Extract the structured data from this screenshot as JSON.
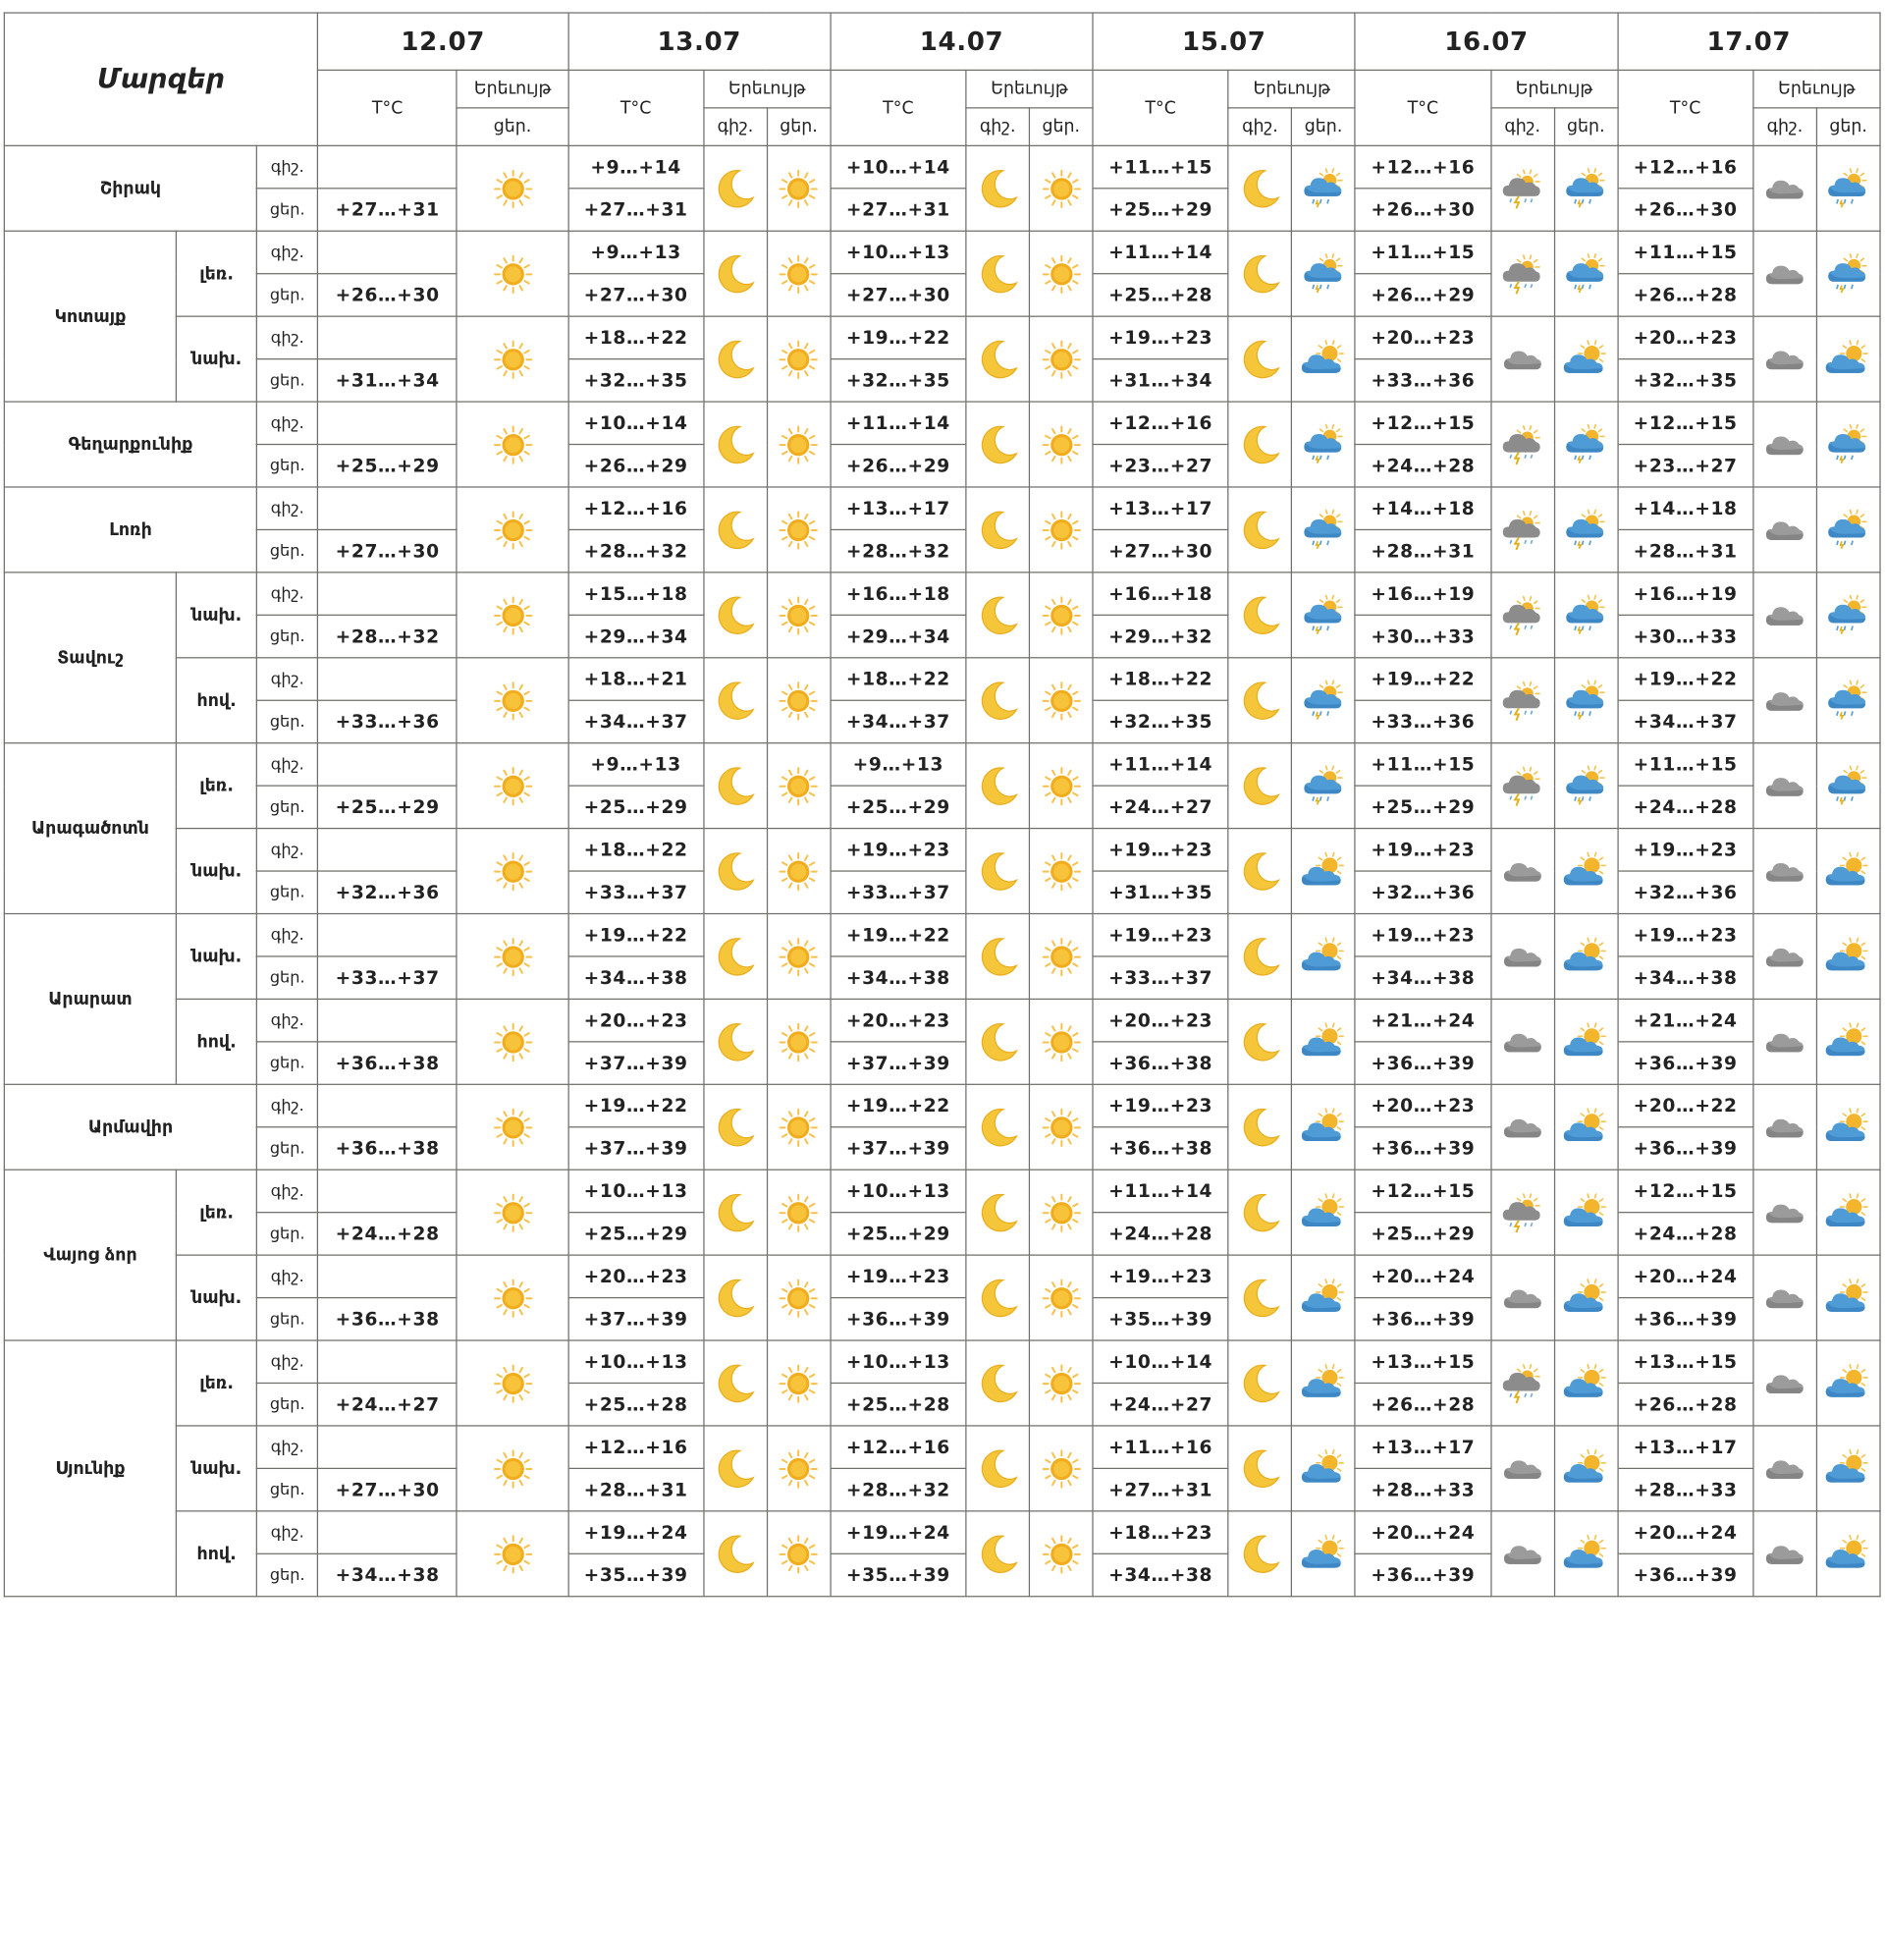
{
  "header": {
    "regions_label": "Մարզեր",
    "temp_label": "T°C",
    "phenomenon_label": "Երեւույթ",
    "night_label": "գիշ.",
    "day_label": "ցեր.",
    "dates": [
      "12.07",
      "13.07",
      "14.07",
      "15.07",
      "16.07",
      "17.07"
    ]
  },
  "icon_legend": {
    "sun": "sun-icon",
    "moon": "moon-icon",
    "thunder": "thunderstorm-icon",
    "rain": "rain-cloud-icon",
    "cloud": "cloud-icon",
    "partly": "partly-cloudy-icon"
  },
  "regions": [
    {
      "name": "Շիրակ",
      "zones": [
        {
          "label": "",
          "night": [
            "",
            "+9…+14",
            "+10…+14",
            "+11…+15",
            "+12…+16",
            "+12…+16"
          ],
          "day": [
            "+27…+31",
            "+27…+31",
            "+27…+31",
            "+25…+29",
            "+26…+30",
            "+26…+30"
          ],
          "day12": "sun",
          "icons": [
            [
              "moon",
              "sun"
            ],
            [
              "moon",
              "sun"
            ],
            [
              "moon",
              "rain"
            ],
            [
              "thunder",
              "rain"
            ],
            [
              "cloud",
              "rain"
            ]
          ]
        }
      ]
    },
    {
      "name": "Կոտայք",
      "zones": [
        {
          "label": "լեռ.",
          "night": [
            "",
            "+9…+13",
            "+10…+13",
            "+11…+14",
            "+11…+15",
            "+11…+15"
          ],
          "day": [
            "+26…+30",
            "+27…+30",
            "+27…+30",
            "+25…+28",
            "+26…+29",
            "+26…+28"
          ],
          "day12": "sun",
          "icons": [
            [
              "moon",
              "sun"
            ],
            [
              "moon",
              "sun"
            ],
            [
              "moon",
              "rain"
            ],
            [
              "thunder",
              "rain"
            ],
            [
              "cloud",
              "rain"
            ]
          ]
        },
        {
          "label": "նախ.",
          "night": [
            "",
            "+18…+22",
            "+19…+22",
            "+19…+23",
            "+20…+23",
            "+20…+23"
          ],
          "day": [
            "+31…+34",
            "+32…+35",
            "+32…+35",
            "+31…+34",
            "+33…+36",
            "+32…+35"
          ],
          "day12": "sun",
          "icons": [
            [
              "moon",
              "sun"
            ],
            [
              "moon",
              "sun"
            ],
            [
              "moon",
              "partly"
            ],
            [
              "cloud",
              "partly"
            ],
            [
              "cloud",
              "partly"
            ]
          ]
        }
      ]
    },
    {
      "name": "Գեղարքունիք",
      "zones": [
        {
          "label": "",
          "night": [
            "",
            "+10…+14",
            "+11…+14",
            "+12…+16",
            "+12…+15",
            "+12…+15"
          ],
          "day": [
            "+25…+29",
            "+26…+29",
            "+26…+29",
            "+23…+27",
            "+24…+28",
            "+23…+27"
          ],
          "day12": "sun",
          "icons": [
            [
              "moon",
              "sun"
            ],
            [
              "moon",
              "sun"
            ],
            [
              "moon",
              "rain"
            ],
            [
              "thunder",
              "rain"
            ],
            [
              "cloud",
              "rain"
            ]
          ]
        }
      ]
    },
    {
      "name": "Լոռի",
      "zones": [
        {
          "label": "",
          "night": [
            "",
            "+12…+16",
            "+13…+17",
            "+13…+17",
            "+14…+18",
            "+14…+18"
          ],
          "day": [
            "+27…+30",
            "+28…+32",
            "+28…+32",
            "+27…+30",
            "+28…+31",
            "+28…+31"
          ],
          "day12": "sun",
          "icons": [
            [
              "moon",
              "sun"
            ],
            [
              "moon",
              "sun"
            ],
            [
              "moon",
              "rain"
            ],
            [
              "thunder",
              "rain"
            ],
            [
              "cloud",
              "rain"
            ]
          ]
        }
      ]
    },
    {
      "name": "Տավուշ",
      "zones": [
        {
          "label": "նախ.",
          "night": [
            "",
            "+15…+18",
            "+16…+18",
            "+16…+18",
            "+16…+19",
            "+16…+19"
          ],
          "day": [
            "+28…+32",
            "+29…+34",
            "+29…+34",
            "+29…+32",
            "+30…+33",
            "+30…+33"
          ],
          "day12": "sun",
          "icons": [
            [
              "moon",
              "sun"
            ],
            [
              "moon",
              "sun"
            ],
            [
              "moon",
              "rain"
            ],
            [
              "thunder",
              "rain"
            ],
            [
              "cloud",
              "rain"
            ]
          ]
        },
        {
          "label": "հով.",
          "night": [
            "",
            "+18…+21",
            "+18…+22",
            "+18…+22",
            "+19…+22",
            "+19…+22"
          ],
          "day": [
            "+33…+36",
            "+34…+37",
            "+34…+37",
            "+32…+35",
            "+33…+36",
            "+34…+37"
          ],
          "day12": "sun",
          "icons": [
            [
              "moon",
              "sun"
            ],
            [
              "moon",
              "sun"
            ],
            [
              "moon",
              "rain"
            ],
            [
              "thunder",
              "rain"
            ],
            [
              "cloud",
              "rain"
            ]
          ]
        }
      ]
    },
    {
      "name": "Արագածոտն",
      "zones": [
        {
          "label": "լեռ.",
          "night": [
            "",
            "+9…+13",
            "+9…+13",
            "+11…+14",
            "+11…+15",
            "+11…+15"
          ],
          "day": [
            "+25…+29",
            "+25…+29",
            "+25…+29",
            "+24…+27",
            "+25…+29",
            "+24…+28"
          ],
          "day12": "sun",
          "icons": [
            [
              "moon",
              "sun"
            ],
            [
              "moon",
              "sun"
            ],
            [
              "moon",
              "rain"
            ],
            [
              "thunder",
              "rain"
            ],
            [
              "cloud",
              "rain"
            ]
          ]
        },
        {
          "label": "նախ.",
          "night": [
            "",
            "+18…+22",
            "+19…+23",
            "+19…+23",
            "+19…+23",
            "+19…+23"
          ],
          "day": [
            "+32…+36",
            "+33…+37",
            "+33…+37",
            "+31…+35",
            "+32…+36",
            "+32…+36"
          ],
          "day12": "sun",
          "icons": [
            [
              "moon",
              "sun"
            ],
            [
              "moon",
              "sun"
            ],
            [
              "moon",
              "partly"
            ],
            [
              "cloud",
              "partly"
            ],
            [
              "cloud",
              "partly"
            ]
          ]
        }
      ]
    },
    {
      "name": "Արարատ",
      "zones": [
        {
          "label": "նախ.",
          "night": [
            "",
            "+19…+22",
            "+19…+22",
            "+19…+23",
            "+19…+23",
            "+19…+23"
          ],
          "day": [
            "+33…+37",
            "+34…+38",
            "+34…+38",
            "+33…+37",
            "+34…+38",
            "+34…+38"
          ],
          "day12": "sun",
          "icons": [
            [
              "moon",
              "sun"
            ],
            [
              "moon",
              "sun"
            ],
            [
              "moon",
              "partly"
            ],
            [
              "cloud",
              "partly"
            ],
            [
              "cloud",
              "partly"
            ]
          ]
        },
        {
          "label": "հով.",
          "night": [
            "",
            "+20…+23",
            "+20…+23",
            "+20…+23",
            "+21…+24",
            "+21…+24"
          ],
          "day": [
            "+36…+38",
            "+37…+39",
            "+37…+39",
            "+36…+38",
            "+36…+39",
            "+36…+39"
          ],
          "day12": "sun",
          "icons": [
            [
              "moon",
              "sun"
            ],
            [
              "moon",
              "sun"
            ],
            [
              "moon",
              "partly"
            ],
            [
              "cloud",
              "partly"
            ],
            [
              "cloud",
              "partly"
            ]
          ]
        }
      ]
    },
    {
      "name": "Արմավիր",
      "zones": [
        {
          "label": "",
          "night": [
            "",
            "+19…+22",
            "+19…+22",
            "+19…+23",
            "+20…+23",
            "+20…+22"
          ],
          "day": [
            "+36…+38",
            "+37…+39",
            "+37…+39",
            "+36…+38",
            "+36…+39",
            "+36…+39"
          ],
          "day12": "sun",
          "icons": [
            [
              "moon",
              "sun"
            ],
            [
              "moon",
              "sun"
            ],
            [
              "moon",
              "partly"
            ],
            [
              "cloud",
              "partly"
            ],
            [
              "cloud",
              "partly"
            ]
          ]
        }
      ]
    },
    {
      "name": "Վայոց ձոր",
      "zones": [
        {
          "label": "լեռ.",
          "night": [
            "",
            "+10…+13",
            "+10…+13",
            "+11…+14",
            "+12…+15",
            "+12…+15"
          ],
          "day": [
            "+24…+28",
            "+25…+29",
            "+25…+29",
            "+24…+28",
            "+25…+29",
            "+24…+28"
          ],
          "day12": "sun",
          "icons": [
            [
              "moon",
              "sun"
            ],
            [
              "moon",
              "sun"
            ],
            [
              "moon",
              "partly"
            ],
            [
              "thunder",
              "partly"
            ],
            [
              "cloud",
              "partly"
            ]
          ]
        },
        {
          "label": "նախ.",
          "night": [
            "",
            "+20…+23",
            "+19…+23",
            "+19…+23",
            "+20…+24",
            "+20…+24"
          ],
          "day": [
            "+36…+38",
            "+37…+39",
            "+36…+39",
            "+35…+39",
            "+36…+39",
            "+36…+39"
          ],
          "day12": "sun",
          "icons": [
            [
              "moon",
              "sun"
            ],
            [
              "moon",
              "sun"
            ],
            [
              "moon",
              "partly"
            ],
            [
              "cloud",
              "partly"
            ],
            [
              "cloud",
              "partly"
            ]
          ]
        }
      ]
    },
    {
      "name": "Սյունիք",
      "zones": [
        {
          "label": "լեռ.",
          "night": [
            "",
            "+10…+13",
            "+10…+13",
            "+10…+14",
            "+13…+15",
            "+13…+15"
          ],
          "day": [
            "+24…+27",
            "+25…+28",
            "+25…+28",
            "+24…+27",
            "+26…+28",
            "+26…+28"
          ],
          "day12": "sun",
          "icons": [
            [
              "moon",
              "sun"
            ],
            [
              "moon",
              "sun"
            ],
            [
              "moon",
              "partly"
            ],
            [
              "thunder",
              "partly"
            ],
            [
              "cloud",
              "partly"
            ]
          ]
        },
        {
          "label": "նախ.",
          "night": [
            "",
            "+12…+16",
            "+12…+16",
            "+11…+16",
            "+13…+17",
            "+13…+17"
          ],
          "day": [
            "+27…+30",
            "+28…+31",
            "+28…+32",
            "+27…+31",
            "+28…+33",
            "+28…+33"
          ],
          "day12": "sun",
          "icons": [
            [
              "moon",
              "sun"
            ],
            [
              "moon",
              "sun"
            ],
            [
              "moon",
              "partly"
            ],
            [
              "cloud",
              "partly"
            ],
            [
              "cloud",
              "partly"
            ]
          ]
        },
        {
          "label": "հով.",
          "night": [
            "",
            "+19…+24",
            "+19…+24",
            "+18…+23",
            "+20…+24",
            "+20…+24"
          ],
          "day": [
            "+34…+38",
            "+35…+39",
            "+35…+39",
            "+34…+38",
            "+36…+39",
            "+36…+39"
          ],
          "day12": "sun",
          "icons": [
            [
              "moon",
              "sun"
            ],
            [
              "moon",
              "sun"
            ],
            [
              "moon",
              "partly"
            ],
            [
              "cloud",
              "partly"
            ],
            [
              "cloud",
              "partly"
            ]
          ]
        }
      ]
    }
  ]
}
